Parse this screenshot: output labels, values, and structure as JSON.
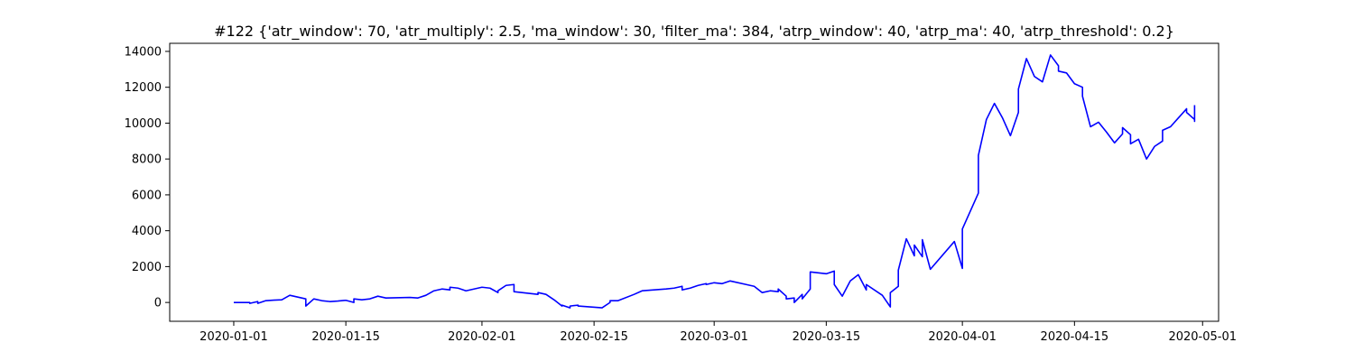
{
  "chart_data": {
    "type": "line",
    "title": "#122 {'atr_window': 70, 'atr_multiply': 2.5, 'ma_window': 30, 'filter_ma': 384, 'atrp_window': 40, 'atrp_ma': 40, 'atrp_threshold': 0.2}",
    "xlabel": "",
    "ylabel": "",
    "grid": false,
    "legend": "none",
    "xlim": [
      "2019-12-24",
      "2020-05-03"
    ],
    "ylim": [
      -1050,
      14450
    ],
    "x_ticks": [
      "2020-01-01",
      "2020-01-15",
      "2020-02-01",
      "2020-02-15",
      "2020-03-01",
      "2020-03-15",
      "2020-04-01",
      "2020-04-15",
      "2020-05-01"
    ],
    "y_ticks": [
      0,
      2000,
      4000,
      6000,
      8000,
      10000,
      12000,
      14000
    ],
    "series": [
      {
        "color": "#0000ff",
        "points": [
          [
            "2020-01-01",
            0
          ],
          [
            "2020-01-02",
            0
          ],
          [
            "2020-01-03",
            0
          ],
          [
            "2020-01-03",
            -50
          ],
          [
            "2020-01-04",
            50
          ],
          [
            "2020-01-04",
            -50
          ],
          [
            "2020-01-05",
            100
          ],
          [
            "2020-01-06",
            130
          ],
          [
            "2020-01-07",
            150
          ],
          [
            "2020-01-08",
            400
          ],
          [
            "2020-01-09",
            300
          ],
          [
            "2020-01-10",
            200
          ],
          [
            "2020-01-10",
            -200
          ],
          [
            "2020-01-11",
            200
          ],
          [
            "2020-01-12",
            100
          ],
          [
            "2020-01-13",
            50
          ],
          [
            "2020-01-14",
            80
          ],
          [
            "2020-01-15",
            120
          ],
          [
            "2020-01-16",
            0
          ],
          [
            "2020-01-16",
            200
          ],
          [
            "2020-01-17",
            150
          ],
          [
            "2020-01-18",
            200
          ],
          [
            "2020-01-19",
            350
          ],
          [
            "2020-01-20",
            250
          ],
          [
            "2020-01-23",
            280
          ],
          [
            "2020-01-24",
            250
          ],
          [
            "2020-01-25",
            400
          ],
          [
            "2020-01-26",
            650
          ],
          [
            "2020-01-27",
            750
          ],
          [
            "2020-01-28",
            700
          ],
          [
            "2020-01-28",
            850
          ],
          [
            "2020-01-29",
            800
          ],
          [
            "2020-01-30",
            650
          ],
          [
            "2020-01-31",
            750
          ],
          [
            "2020-02-01",
            850
          ],
          [
            "2020-02-02",
            800
          ],
          [
            "2020-02-03",
            550
          ],
          [
            "2020-02-03",
            650
          ],
          [
            "2020-02-04",
            950
          ],
          [
            "2020-02-05",
            1000
          ],
          [
            "2020-02-05",
            600
          ],
          [
            "2020-02-08",
            450
          ],
          [
            "2020-02-08",
            550
          ],
          [
            "2020-02-09",
            450
          ],
          [
            "2020-02-10",
            150
          ],
          [
            "2020-02-11",
            -200
          ],
          [
            "2020-02-11",
            -150
          ],
          [
            "2020-02-12",
            -300
          ],
          [
            "2020-02-12",
            -200
          ],
          [
            "2020-02-13",
            -150
          ],
          [
            "2020-02-13",
            -200
          ],
          [
            "2020-02-16",
            -300
          ],
          [
            "2020-02-17",
            0
          ],
          [
            "2020-02-17",
            100
          ],
          [
            "2020-02-18",
            100
          ],
          [
            "2020-02-20",
            450
          ],
          [
            "2020-02-21",
            650
          ],
          [
            "2020-02-24",
            750
          ],
          [
            "2020-02-25",
            800
          ],
          [
            "2020-02-26",
            900
          ],
          [
            "2020-02-26",
            700
          ],
          [
            "2020-02-27",
            800
          ],
          [
            "2020-02-28",
            950
          ],
          [
            "2020-02-29",
            1050
          ],
          [
            "2020-02-29",
            1000
          ],
          [
            "2020-03-01",
            1100
          ],
          [
            "2020-03-02",
            1050
          ],
          [
            "2020-03-03",
            1200
          ],
          [
            "2020-03-05",
            1000
          ],
          [
            "2020-03-06",
            900
          ],
          [
            "2020-03-07",
            550
          ],
          [
            "2020-03-08",
            650
          ],
          [
            "2020-03-09",
            600
          ],
          [
            "2020-03-09",
            750
          ],
          [
            "2020-03-10",
            350
          ],
          [
            "2020-03-10",
            200
          ],
          [
            "2020-03-11",
            250
          ],
          [
            "2020-03-11",
            0
          ],
          [
            "2020-03-12",
            450
          ],
          [
            "2020-03-12",
            200
          ],
          [
            "2020-03-13",
            750
          ],
          [
            "2020-03-13",
            1700
          ],
          [
            "2020-03-15",
            1600
          ],
          [
            "2020-03-16",
            1750
          ],
          [
            "2020-03-16",
            1000
          ],
          [
            "2020-03-17",
            350
          ],
          [
            "2020-03-18",
            1200
          ],
          [
            "2020-03-19",
            1550
          ],
          [
            "2020-03-20",
            700
          ],
          [
            "2020-03-20",
            1000
          ],
          [
            "2020-03-22",
            400
          ],
          [
            "2020-03-23",
            -250
          ],
          [
            "2020-03-23",
            550
          ],
          [
            "2020-03-24",
            900
          ],
          [
            "2020-03-24",
            1800
          ],
          [
            "2020-03-25",
            3550
          ],
          [
            "2020-03-26",
            2600
          ],
          [
            "2020-03-26",
            3200
          ],
          [
            "2020-03-27",
            2550
          ],
          [
            "2020-03-27",
            3500
          ],
          [
            "2020-03-28",
            1850
          ],
          [
            "2020-03-31",
            3400
          ],
          [
            "2020-04-01",
            1900
          ],
          [
            "2020-04-01",
            2100
          ],
          [
            "2020-04-01",
            4100
          ],
          [
            "2020-04-03",
            6100
          ],
          [
            "2020-04-03",
            8200
          ],
          [
            "2020-04-04",
            10200
          ],
          [
            "2020-04-05",
            11100
          ],
          [
            "2020-04-06",
            10300
          ],
          [
            "2020-04-07",
            9300
          ],
          [
            "2020-04-08",
            10600
          ],
          [
            "2020-04-08",
            11900
          ],
          [
            "2020-04-09",
            13600
          ],
          [
            "2020-04-10",
            12600
          ],
          [
            "2020-04-11",
            12300
          ],
          [
            "2020-04-12",
            13800
          ],
          [
            "2020-04-13",
            13200
          ],
          [
            "2020-04-13",
            12900
          ],
          [
            "2020-04-14",
            12800
          ],
          [
            "2020-04-15",
            12200
          ],
          [
            "2020-04-16",
            12000
          ],
          [
            "2020-04-16",
            11500
          ],
          [
            "2020-04-17",
            9800
          ],
          [
            "2020-04-18",
            10050
          ],
          [
            "2020-04-19",
            9500
          ],
          [
            "2020-04-20",
            8900
          ],
          [
            "2020-04-21",
            9400
          ],
          [
            "2020-04-21",
            9750
          ],
          [
            "2020-04-22",
            9350
          ],
          [
            "2020-04-22",
            8850
          ],
          [
            "2020-04-23",
            9100
          ],
          [
            "2020-04-24",
            8000
          ],
          [
            "2020-04-25",
            8700
          ],
          [
            "2020-04-26",
            9000
          ],
          [
            "2020-04-26",
            9600
          ],
          [
            "2020-04-27",
            9800
          ],
          [
            "2020-04-28",
            10300
          ],
          [
            "2020-04-29",
            10800
          ],
          [
            "2020-04-29",
            10600
          ],
          [
            "2020-04-30",
            10200
          ],
          [
            "2020-04-30",
            10400
          ],
          [
            "2020-04-30",
            10100
          ],
          [
            "2020-04-30",
            10500
          ],
          [
            "2020-04-30",
            11000
          ]
        ]
      }
    ]
  }
}
